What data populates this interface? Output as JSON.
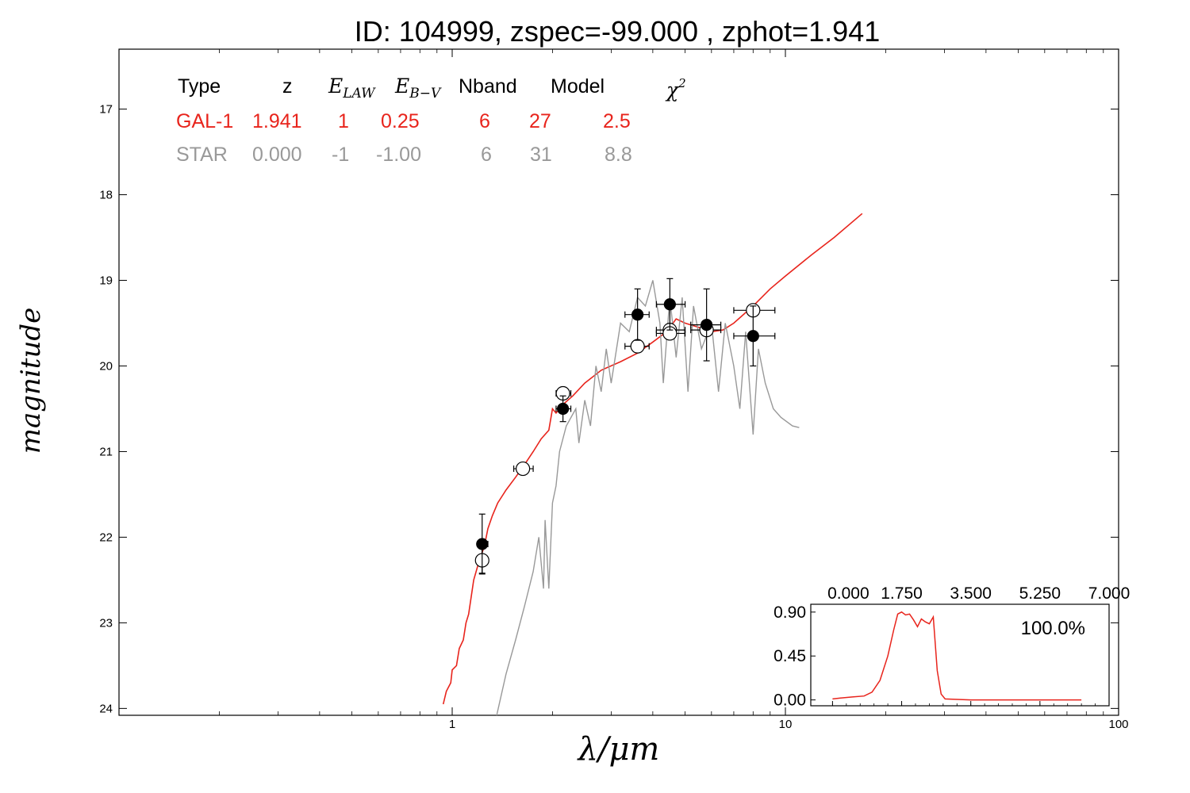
{
  "chart_data": [
    {
      "type": "line",
      "title": "ID:  104999, zspec=-99.000 , zphot=1.941",
      "xlabel": "λ/μm",
      "ylabel": "magnitude",
      "xscale": "log",
      "xlim": [
        0.1,
        100
      ],
      "ylim": [
        24.08,
        16.3
      ],
      "y_inverted": true,
      "x_tick_labels": [
        "1",
        "10",
        "100"
      ],
      "y_tick_labels": [
        "17",
        "18",
        "19",
        "20",
        "21",
        "22",
        "23",
        "24"
      ],
      "grid": false,
      "fit_table": {
        "headers": [
          "Type",
          "z",
          "E_LAW",
          "E_B-V",
          "Nband",
          "Model",
          "χ²"
        ],
        "rows": [
          {
            "cells": [
              "GAL-1",
              "1.941",
              "1",
              "0.25",
              "6",
              "27",
              "2.5"
            ],
            "color": "#e8241c"
          },
          {
            "cells": [
              "STAR",
              "0.000",
              "-1",
              "-1.00",
              "6",
              "31",
              "8.8"
            ],
            "color": "#999999"
          }
        ]
      },
      "series": [
        {
          "name": "GAL-1",
          "color": "#e8241c",
          "points": [
            [
              0.94,
              23.95
            ],
            [
              0.96,
              23.8
            ],
            [
              0.99,
              23.7
            ],
            [
              1.0,
              23.55
            ],
            [
              1.03,
              23.5
            ],
            [
              1.05,
              23.3
            ],
            [
              1.08,
              23.2
            ],
            [
              1.1,
              23.0
            ],
            [
              1.12,
              22.9
            ],
            [
              1.14,
              22.7
            ],
            [
              1.16,
              22.5
            ],
            [
              1.2,
              22.3
            ],
            [
              1.25,
              22.1
            ],
            [
              1.28,
              21.9
            ],
            [
              1.32,
              21.75
            ],
            [
              1.37,
              21.6
            ],
            [
              1.45,
              21.45
            ],
            [
              1.55,
              21.3
            ],
            [
              1.65,
              21.15
            ],
            [
              1.75,
              21.0
            ],
            [
              1.85,
              20.85
            ],
            [
              1.95,
              20.75
            ],
            [
              2.0,
              20.5
            ],
            [
              2.05,
              20.55
            ],
            [
              2.15,
              20.45
            ],
            [
              2.3,
              20.35
            ],
            [
              2.5,
              20.2
            ],
            [
              2.8,
              20.05
            ],
            [
              3.2,
              19.95
            ],
            [
              3.6,
              19.85
            ],
            [
              4.0,
              19.72
            ],
            [
              4.4,
              19.6
            ],
            [
              4.7,
              19.45
            ],
            [
              5.0,
              19.5
            ],
            [
              5.5,
              19.55
            ],
            [
              6.0,
              19.6
            ],
            [
              6.5,
              19.58
            ],
            [
              7.0,
              19.5
            ],
            [
              8.0,
              19.3
            ],
            [
              9.0,
              19.1
            ],
            [
              10.0,
              18.95
            ],
            [
              12.0,
              18.7
            ],
            [
              14.0,
              18.5
            ],
            [
              17.0,
              18.22
            ]
          ]
        },
        {
          "name": "STAR",
          "color": "#999999",
          "points": [
            [
              1.36,
              24.08
            ],
            [
              1.45,
              23.6
            ],
            [
              1.55,
              23.2
            ],
            [
              1.65,
              22.8
            ],
            [
              1.75,
              22.4
            ],
            [
              1.82,
              22.0
            ],
            [
              1.88,
              22.6
            ],
            [
              1.9,
              21.8
            ],
            [
              1.95,
              22.6
            ],
            [
              2.0,
              21.6
            ],
            [
              2.05,
              21.4
            ],
            [
              2.1,
              21.0
            ],
            [
              2.2,
              20.7
            ],
            [
              2.35,
              20.5
            ],
            [
              2.4,
              20.9
            ],
            [
              2.5,
              20.4
            ],
            [
              2.6,
              20.7
            ],
            [
              2.7,
              20.0
            ],
            [
              2.8,
              20.3
            ],
            [
              2.9,
              19.8
            ],
            [
              3.0,
              20.2
            ],
            [
              3.2,
              19.5
            ],
            [
              3.4,
              19.6
            ],
            [
              3.6,
              19.2
            ],
            [
              3.8,
              19.3
            ],
            [
              4.0,
              19.0
            ],
            [
              4.2,
              19.5
            ],
            [
              4.3,
              20.2
            ],
            [
              4.5,
              19.2
            ],
            [
              4.7,
              19.9
            ],
            [
              4.9,
              19.2
            ],
            [
              5.1,
              20.3
            ],
            [
              5.3,
              19.3
            ],
            [
              5.6,
              19.8
            ],
            [
              6.0,
              19.5
            ],
            [
              6.3,
              20.3
            ],
            [
              6.6,
              19.5
            ],
            [
              7.0,
              20.0
            ],
            [
              7.3,
              20.5
            ],
            [
              7.6,
              19.6
            ],
            [
              8.0,
              20.8
            ],
            [
              8.3,
              19.8
            ],
            [
              8.7,
              20.2
            ],
            [
              9.2,
              20.5
            ],
            [
              9.7,
              20.6
            ],
            [
              10.5,
              20.7
            ],
            [
              11.0,
              20.72
            ]
          ]
        }
      ],
      "observed_points_filled": [
        {
          "x": 1.23,
          "y": 22.08,
          "xerr": [
            1.19,
            1.28
          ],
          "yerr": [
            21.73,
            22.43
          ]
        },
        {
          "x": 2.15,
          "y": 20.5,
          "xerr": [
            2.05,
            2.27
          ],
          "yerr": [
            20.35,
            20.65
          ]
        },
        {
          "x": 3.6,
          "y": 19.4,
          "xerr": [
            3.3,
            3.9
          ],
          "yerr": [
            19.1,
            19.7
          ]
        },
        {
          "x": 4.5,
          "y": 19.28,
          "xerr": [
            4.1,
            5.0
          ],
          "yerr": [
            18.98,
            19.58
          ]
        },
        {
          "x": 5.8,
          "y": 19.52,
          "xerr": [
            5.2,
            6.4
          ],
          "yerr": [
            19.1,
            19.94
          ]
        },
        {
          "x": 8.0,
          "y": 19.65,
          "xerr": [
            7.0,
            9.3
          ],
          "yerr": [
            19.3,
            20.0
          ]
        }
      ],
      "model_points_open": [
        {
          "x": 1.23,
          "y": 22.27,
          "xerr": [
            1.19,
            1.28
          ],
          "yerr": [
            22.12,
            22.42
          ]
        },
        {
          "x": 1.63,
          "y": 21.2,
          "xerr": [
            1.53,
            1.75
          ],
          "yerr": [
            21.2,
            21.2
          ]
        },
        {
          "x": 2.15,
          "y": 20.32,
          "xerr": [
            2.05,
            2.27
          ],
          "yerr": [
            20.32,
            20.32
          ]
        },
        {
          "x": 3.6,
          "y": 19.77,
          "xerr": [
            3.3,
            3.9
          ],
          "yerr": [
            19.77,
            19.77
          ]
        },
        {
          "x": 4.5,
          "y": 19.58,
          "xerr": [
            4.1,
            5.0
          ],
          "yerr": [
            19.58,
            19.58
          ]
        },
        {
          "x": 4.5,
          "y": 19.62,
          "xerr": [
            4.1,
            5.0
          ],
          "yerr": [
            19.62,
            19.62
          ]
        },
        {
          "x": 5.8,
          "y": 19.58,
          "xerr": [
            5.2,
            6.4
          ],
          "yerr": [
            19.58,
            19.58
          ]
        },
        {
          "x": 8.0,
          "y": 19.35,
          "xerr": [
            7.0,
            9.3
          ],
          "yerr": [
            19.35,
            19.35
          ]
        }
      ]
    },
    {
      "type": "line",
      "title": "",
      "xlim": [
        -0.55,
        7.0
      ],
      "ylim": [
        -0.06,
        0.98
      ],
      "x_tick_labels": [
        "0.000",
        "1.750",
        "3.500",
        "5.250",
        "7.000"
      ],
      "y_tick_labels": [
        "0.00",
        "0.45",
        "0.90"
      ],
      "annotation": "100.0%",
      "series": [
        {
          "color": "#e8241c",
          "points": [
            [
              0.0,
              0.01
            ],
            [
              0.2,
              0.02
            ],
            [
              0.5,
              0.03
            ],
            [
              0.8,
              0.04
            ],
            [
              1.0,
              0.08
            ],
            [
              1.2,
              0.2
            ],
            [
              1.4,
              0.45
            ],
            [
              1.55,
              0.72
            ],
            [
              1.65,
              0.88
            ],
            [
              1.75,
              0.9
            ],
            [
              1.85,
              0.87
            ],
            [
              1.95,
              0.88
            ],
            [
              2.05,
              0.82
            ],
            [
              2.15,
              0.75
            ],
            [
              2.25,
              0.83
            ],
            [
              2.35,
              0.8
            ],
            [
              2.45,
              0.78
            ],
            [
              2.55,
              0.85
            ],
            [
              2.65,
              0.3
            ],
            [
              2.75,
              0.06
            ],
            [
              2.85,
              0.01
            ],
            [
              3.5,
              0.0
            ],
            [
              5.25,
              0.0
            ],
            [
              6.3,
              0.0
            ]
          ]
        }
      ]
    }
  ]
}
